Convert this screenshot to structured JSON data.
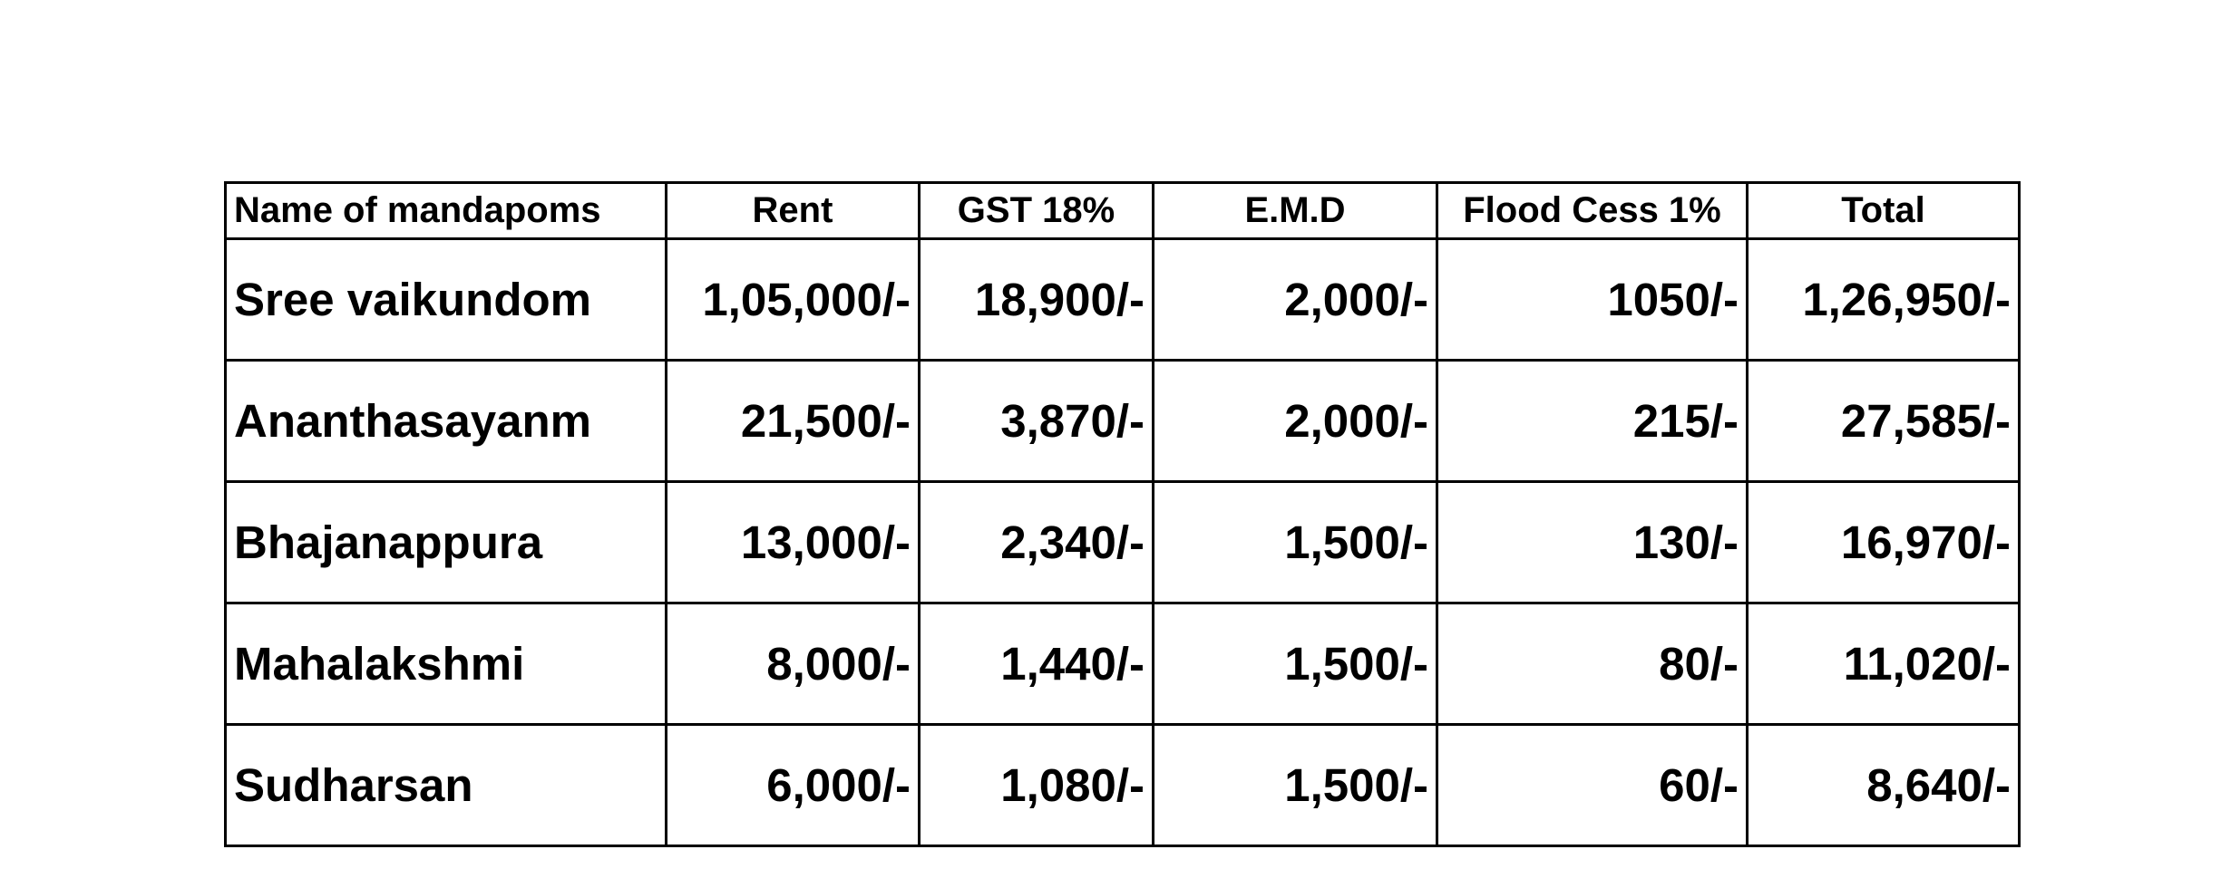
{
  "table": {
    "headers": [
      "Name of mandapoms",
      "Rent",
      "GST 18%",
      "E.M.D",
      "Flood Cess 1%",
      "Total"
    ],
    "rows": [
      {
        "name": "Sree vaikundom",
        "rent": "1,05,000/-",
        "gst": "18,900/-",
        "emd": "2,000/-",
        "cess": "1050/-",
        "total": "1,26,950/-"
      },
      {
        "name": "Ananthasayanm",
        "rent": "21,500/-",
        "gst": "3,870/-",
        "emd": "2,000/-",
        "cess": "215/-",
        "total": "27,585/-"
      },
      {
        "name": "Bhajanappura",
        "rent": "13,000/-",
        "gst": "2,340/-",
        "emd": "1,500/-",
        "cess": "130/-",
        "total": "16,970/-"
      },
      {
        "name": "Mahalakshmi",
        "rent": "8,000/-",
        "gst": "1,440/-",
        "emd": "1,500/-",
        "cess": "80/-",
        "total": "11,020/-"
      },
      {
        "name": "Sudharsan",
        "rent": "6,000/-",
        "gst": "1,080/-",
        "emd": "1,500/-",
        "cess": "60/-",
        "total": "8,640/-"
      }
    ]
  }
}
